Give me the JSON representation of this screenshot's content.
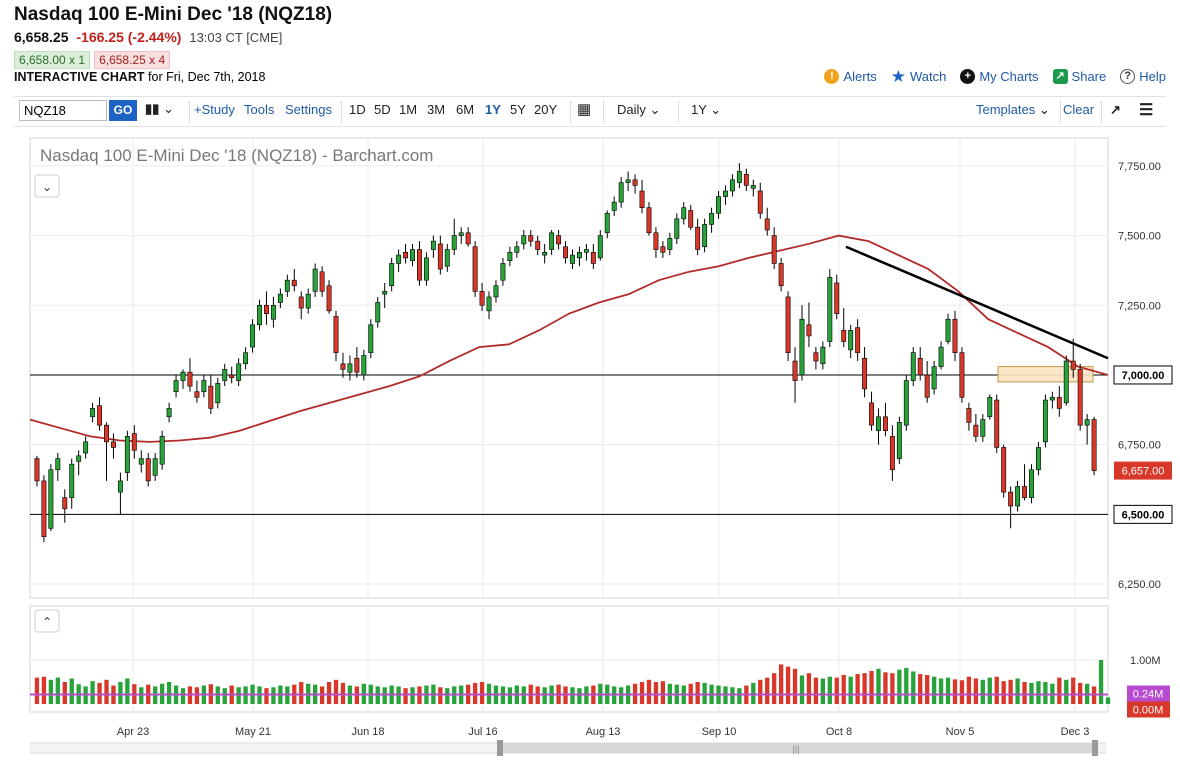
{
  "header": {
    "title": "Nasdaq 100 E-Mini Dec '18 (NQZ18)",
    "last_price": "6,658.25",
    "change": "-166.25 (-2.44%)",
    "time": "13:03 CT [CME]",
    "bid": "6,658.00 x 1",
    "ask": "6,658.25 x 4",
    "interactive_label": "INTERACTIVE CHART",
    "interactive_date": "for Fri, Dec 7th, 2018"
  },
  "topright": {
    "alerts": "Alerts",
    "watch": "Watch",
    "mycharts": "My Charts",
    "share": "Share",
    "help": "Help"
  },
  "toolbar": {
    "symbol_value": "NQZ18",
    "go": "GO",
    "study": "+Study",
    "tools": "Tools",
    "settings": "Settings",
    "periods": [
      "1D",
      "5D",
      "1M",
      "3M",
      "6M",
      "1Y",
      "5Y",
      "20Y"
    ],
    "active_period": "1Y",
    "interval": "Daily",
    "range": "1Y",
    "templates": "Templates",
    "clear": "Clear"
  },
  "colors": {
    "up": "#27a33a",
    "down": "#d8382a",
    "ma": "#b22a2a",
    "trend": "#000000",
    "zone_fill": "#fbe3c2",
    "zone_stroke": "#c4964c",
    "volume_ma": "#b84bd0",
    "link": "#1f5aa6"
  },
  "chart_data": {
    "type": "candlestick",
    "title": "Nasdaq 100 E-Mini Dec '18 (NQZ18) - Barchart.com",
    "y_ticks": [
      6250,
      6500,
      6750,
      7000,
      7250,
      7500,
      7750
    ],
    "y_tick_labels": [
      "6,250.00",
      "6,500.00",
      "6,750.00",
      "7,000.00",
      "7,250.00",
      "7,500.00",
      "7,750.00"
    ],
    "ylim": [
      6200,
      7850
    ],
    "x_labels": [
      "Apr 23",
      "May 21",
      "Jun 18",
      "Jul 16",
      "Aug 13",
      "Sep 10",
      "Oct 8",
      "Nov 5",
      "Dec 3"
    ],
    "last_price_label": "6,657.00",
    "horizontal_lines": [
      {
        "value": 7000,
        "label": "7,000.00"
      },
      {
        "value": 6500,
        "label": "6,500.00"
      }
    ],
    "resistance_zone": {
      "x_from": "Nov 26",
      "x_to": "Dec 7",
      "low": 6975,
      "high": 7030
    },
    "trendline": {
      "from": {
        "date": "Oct 10",
        "value": 7460
      },
      "to": {
        "date": "Dec 7",
        "value": 7060
      }
    },
    "moving_average": {
      "name": "50-day MA",
      "values": [
        6840,
        6810,
        6780,
        6765,
        6760,
        6765,
        6775,
        6800,
        6835,
        6870,
        6900,
        6930,
        6960,
        6995,
        7050,
        7100,
        7110,
        7160,
        7220,
        7260,
        7290,
        7340,
        7370,
        7390,
        7420,
        7445,
        7470,
        7500,
        7480,
        7430,
        7380,
        7300,
        7200,
        7150,
        7100,
        7030,
        7000
      ]
    },
    "candles": [
      [
        6700,
        6710,
        6600,
        6620
      ],
      [
        6620,
        6640,
        6400,
        6420
      ],
      [
        6450,
        6680,
        6440,
        6660
      ],
      [
        6660,
        6720,
        6620,
        6700
      ],
      [
        6560,
        6590,
        6470,
        6520
      ],
      [
        6560,
        6700,
        6520,
        6680
      ],
      [
        6690,
        6730,
        6640,
        6710
      ],
      [
        6720,
        6780,
        6700,
        6760
      ],
      [
        6850,
        6900,
        6830,
        6880
      ],
      [
        6890,
        6920,
        6800,
        6820
      ],
      [
        6820,
        6830,
        6620,
        6760
      ],
      [
        6760,
        6790,
        6700,
        6740
      ],
      [
        6580,
        6650,
        6500,
        6620
      ],
      [
        6650,
        6800,
        6620,
        6780
      ],
      [
        6790,
        6820,
        6700,
        6730
      ],
      [
        6680,
        6730,
        6650,
        6700
      ],
      [
        6700,
        6720,
        6600,
        6620
      ],
      [
        6640,
        6720,
        6620,
        6700
      ],
      [
        6680,
        6800,
        6660,
        6780
      ],
      [
        6850,
        6900,
        6830,
        6880
      ],
      [
        6940,
        7000,
        6920,
        6980
      ],
      [
        6980,
        7020,
        6950,
        7010
      ],
      [
        7010,
        7060,
        6940,
        6960
      ],
      [
        6940,
        6980,
        6900,
        6920
      ],
      [
        6940,
        7000,
        6920,
        6980
      ],
      [
        6960,
        7000,
        6860,
        6880
      ],
      [
        6900,
        6990,
        6880,
        6970
      ],
      [
        6980,
        7040,
        6960,
        7020
      ],
      [
        7000,
        7030,
        6970,
        6990
      ],
      [
        6980,
        7060,
        6960,
        7040
      ],
      [
        7040,
        7100,
        7020,
        7080
      ],
      [
        7100,
        7200,
        7080,
        7180
      ],
      [
        7180,
        7270,
        7160,
        7250
      ],
      [
        7250,
        7300,
        7180,
        7220
      ],
      [
        7200,
        7280,
        7170,
        7250
      ],
      [
        7260,
        7310,
        7240,
        7290
      ],
      [
        7300,
        7360,
        7280,
        7340
      ],
      [
        7340,
        7380,
        7300,
        7320
      ],
      [
        7280,
        7300,
        7200,
        7240
      ],
      [
        7240,
        7310,
        7220,
        7290
      ],
      [
        7300,
        7400,
        7280,
        7380
      ],
      [
        7370,
        7390,
        7280,
        7300
      ],
      [
        7320,
        7340,
        7220,
        7230
      ],
      [
        7210,
        7230,
        7050,
        7080
      ],
      [
        7040,
        7080,
        6990,
        7020
      ],
      [
        7010,
        7070,
        6980,
        7040
      ],
      [
        7060,
        7100,
        6990,
        7010
      ],
      [
        7000,
        7090,
        6980,
        7070
      ],
      [
        7080,
        7200,
        7060,
        7180
      ],
      [
        7190,
        7280,
        7170,
        7260
      ],
      [
        7290,
        7330,
        7240,
        7300
      ],
      [
        7320,
        7420,
        7300,
        7400
      ],
      [
        7400,
        7450,
        7370,
        7430
      ],
      [
        7440,
        7470,
        7400,
        7420
      ],
      [
        7410,
        7470,
        7390,
        7450
      ],
      [
        7450,
        7480,
        7320,
        7340
      ],
      [
        7340,
        7440,
        7320,
        7420
      ],
      [
        7450,
        7500,
        7420,
        7480
      ],
      [
        7470,
        7500,
        7360,
        7380
      ],
      [
        7390,
        7470,
        7370,
        7450
      ],
      [
        7450,
        7560,
        7430,
        7500
      ],
      [
        7500,
        7530,
        7470,
        7510
      ],
      [
        7510,
        7530,
        7460,
        7470
      ],
      [
        7460,
        7480,
        7280,
        7300
      ],
      [
        7300,
        7330,
        7230,
        7250
      ],
      [
        7230,
        7300,
        7200,
        7280
      ],
      [
        7280,
        7340,
        7260,
        7320
      ],
      [
        7340,
        7420,
        7320,
        7400
      ],
      [
        7410,
        7460,
        7390,
        7440
      ],
      [
        7440,
        7480,
        7420,
        7460
      ],
      [
        7470,
        7520,
        7450,
        7500
      ],
      [
        7500,
        7520,
        7460,
        7480
      ],
      [
        7480,
        7500,
        7430,
        7450
      ],
      [
        7430,
        7470,
        7400,
        7440
      ],
      [
        7450,
        7520,
        7430,
        7510
      ],
      [
        7500,
        7520,
        7450,
        7470
      ],
      [
        7460,
        7480,
        7400,
        7420
      ],
      [
        7400,
        7450,
        7380,
        7430
      ],
      [
        7420,
        7460,
        7390,
        7440
      ],
      [
        7440,
        7470,
        7410,
        7450
      ],
      [
        7440,
        7470,
        7380,
        7400
      ],
      [
        7420,
        7520,
        7410,
        7500
      ],
      [
        7510,
        7590,
        7490,
        7580
      ],
      [
        7590,
        7640,
        7570,
        7620
      ],
      [
        7620,
        7710,
        7600,
        7690
      ],
      [
        7690,
        7730,
        7660,
        7700
      ],
      [
        7700,
        7720,
        7650,
        7680
      ],
      [
        7660,
        7700,
        7580,
        7600
      ],
      [
        7600,
        7620,
        7500,
        7510
      ],
      [
        7510,
        7530,
        7420,
        7450
      ],
      [
        7460,
        7480,
        7420,
        7440
      ],
      [
        7450,
        7510,
        7430,
        7490
      ],
      [
        7490,
        7580,
        7470,
        7560
      ],
      [
        7560,
        7620,
        7540,
        7600
      ],
      [
        7590,
        7610,
        7520,
        7530
      ],
      [
        7530,
        7560,
        7430,
        7450
      ],
      [
        7460,
        7560,
        7440,
        7540
      ],
      [
        7540,
        7600,
        7510,
        7580
      ],
      [
        7580,
        7660,
        7560,
        7640
      ],
      [
        7640,
        7680,
        7610,
        7660
      ],
      [
        7660,
        7720,
        7640,
        7700
      ],
      [
        7690,
        7760,
        7670,
        7730
      ],
      [
        7720,
        7740,
        7660,
        7680
      ],
      [
        7670,
        7700,
        7640,
        7680
      ],
      [
        7660,
        7690,
        7560,
        7580
      ],
      [
        7560,
        7600,
        7500,
        7520
      ],
      [
        7500,
        7530,
        7380,
        7400
      ],
      [
        7400,
        7420,
        7300,
        7320
      ],
      [
        7280,
        7300,
        7050,
        7080
      ],
      [
        7050,
        7100,
        6900,
        6980
      ],
      [
        7000,
        7250,
        6980,
        7200
      ],
      [
        7180,
        7260,
        7100,
        7140
      ],
      [
        7080,
        7100,
        7020,
        7050
      ],
      [
        7040,
        7120,
        7020,
        7100
      ],
      [
        7120,
        7380,
        7100,
        7350
      ],
      [
        7330,
        7360,
        7200,
        7220
      ],
      [
        7160,
        7240,
        7100,
        7120
      ],
      [
        7090,
        7180,
        7060,
        7160
      ],
      [
        7170,
        7200,
        7050,
        7080
      ],
      [
        7060,
        7100,
        6920,
        6950
      ],
      [
        6900,
        6940,
        6800,
        6820
      ],
      [
        6800,
        6880,
        6750,
        6850
      ],
      [
        6850,
        6900,
        6780,
        6800
      ],
      [
        6780,
        6820,
        6620,
        6660
      ],
      [
        6700,
        6850,
        6680,
        6830
      ],
      [
        6820,
        7000,
        6800,
        6980
      ],
      [
        6980,
        7100,
        6960,
        7080
      ],
      [
        7060,
        7100,
        6980,
        7000
      ],
      [
        7000,
        7050,
        6900,
        6920
      ],
      [
        6950,
        7050,
        6930,
        7030
      ],
      [
        7030,
        7120,
        7020,
        7100
      ],
      [
        7120,
        7220,
        7110,
        7200
      ],
      [
        7200,
        7230,
        7050,
        7080
      ],
      [
        7080,
        7100,
        6900,
        6920
      ],
      [
        6880,
        6900,
        6800,
        6830
      ],
      [
        6820,
        6860,
        6760,
        6780
      ],
      [
        6780,
        6860,
        6760,
        6840
      ],
      [
        6850,
        6930,
        6840,
        6920
      ],
      [
        6910,
        6930,
        6720,
        6740
      ],
      [
        6740,
        6750,
        6560,
        6580
      ],
      [
        6580,
        6600,
        6450,
        6530
      ],
      [
        6530,
        6620,
        6510,
        6600
      ],
      [
        6600,
        6680,
        6550,
        6560
      ],
      [
        6560,
        6680,
        6540,
        6660
      ],
      [
        6660,
        6760,
        6640,
        6740
      ],
      [
        6760,
        6930,
        6740,
        6910
      ],
      [
        6910,
        6940,
        6880,
        6920
      ],
      [
        6920,
        6960,
        6850,
        6880
      ],
      [
        6900,
        7070,
        6890,
        7050
      ],
      [
        7050,
        7130,
        6990,
        7020
      ],
      [
        7020,
        7040,
        6800,
        6820
      ],
      [
        6820,
        6860,
        6750,
        6840
      ],
      [
        6840,
        6850,
        6640,
        6657
      ]
    ],
    "volume_ticks": [
      {
        "value": 1000000,
        "label": "1.00M"
      }
    ],
    "volume_labels": [
      "0.24M",
      "0.00M"
    ],
    "volumes": [
      0.6,
      0.62,
      0.55,
      0.6,
      0.5,
      0.58,
      0.45,
      0.4,
      0.52,
      0.48,
      0.55,
      0.42,
      0.5,
      0.58,
      0.45,
      0.38,
      0.44,
      0.4,
      0.46,
      0.5,
      0.42,
      0.36,
      0.4,
      0.38,
      0.42,
      0.45,
      0.4,
      0.36,
      0.42,
      0.38,
      0.4,
      0.44,
      0.4,
      0.36,
      0.38,
      0.42,
      0.4,
      0.44,
      0.5,
      0.46,
      0.44,
      0.4,
      0.5,
      0.55,
      0.48,
      0.42,
      0.4,
      0.46,
      0.44,
      0.4,
      0.38,
      0.42,
      0.4,
      0.36,
      0.38,
      0.4,
      0.42,
      0.44,
      0.38,
      0.36,
      0.4,
      0.42,
      0.44,
      0.48,
      0.5,
      0.46,
      0.42,
      0.4,
      0.38,
      0.42,
      0.4,
      0.44,
      0.4,
      0.38,
      0.42,
      0.44,
      0.4,
      0.38,
      0.36,
      0.4,
      0.42,
      0.46,
      0.44,
      0.4,
      0.38,
      0.42,
      0.46,
      0.5,
      0.55,
      0.5,
      0.52,
      0.46,
      0.44,
      0.42,
      0.46,
      0.5,
      0.48,
      0.44,
      0.42,
      0.4,
      0.38,
      0.36,
      0.42,
      0.48,
      0.55,
      0.6,
      0.7,
      0.9,
      0.85,
      0.8,
      0.65,
      0.7,
      0.6,
      0.58,
      0.62,
      0.6,
      0.66,
      0.62,
      0.68,
      0.7,
      0.75,
      0.8,
      0.72,
      0.7,
      0.78,
      0.82,
      0.74,
      0.68,
      0.66,
      0.62,
      0.58,
      0.6,
      0.56,
      0.54,
      0.62,
      0.58,
      0.55,
      0.6,
      0.62,
      0.52,
      0.55,
      0.58,
      0.5,
      0.48,
      0.52,
      0.5,
      0.46,
      0.6,
      0.55,
      0.6,
      0.48,
      0.46,
      0.4,
      1.0,
      0.15
    ]
  },
  "scrollbar": {
    "grip": "|||"
  }
}
